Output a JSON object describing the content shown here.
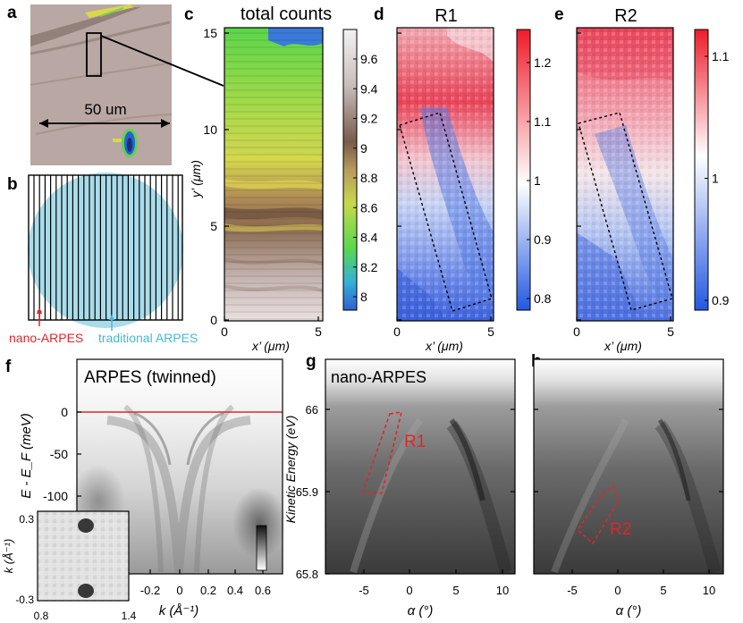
{
  "panel_letters": {
    "a": "a",
    "b": "b",
    "c": "c",
    "d": "d",
    "e": "e",
    "f": "f",
    "g": "g",
    "h": "h"
  },
  "panel_a": {
    "scale_label": "50 um"
  },
  "panel_b": {
    "label_nano": "nano-ARPES",
    "label_traditional": "traditional ARPES"
  },
  "panel_c": {
    "title": "total counts",
    "xlabel": "x’ (μm)",
    "ylabel": "y’ (μm)",
    "xticks": [
      "0",
      "5"
    ],
    "yticks": [
      "0",
      "5",
      "10",
      "15"
    ],
    "colorbar_ticks": [
      "9.6",
      "9.4",
      "9.2",
      "9",
      "8.8",
      "8.6",
      "8.4",
      "8.2",
      "8"
    ]
  },
  "panel_d": {
    "title": "R1",
    "xlabel": "x’ (μm)",
    "xticks": [
      "0",
      "5"
    ],
    "colorbar_ticks": [
      "1.2",
      "1.1",
      "1",
      "0.9",
      "0.8"
    ]
  },
  "panel_e": {
    "title": "R2",
    "xlabel": "x’ (μm)",
    "xticks": [
      "0",
      "5"
    ],
    "colorbar_ticks": [
      "1.1",
      "1",
      "0.9"
    ]
  },
  "panel_f": {
    "title": "ARPES (twinned)",
    "ylabel": "E - E_F (meV)",
    "xlabel": "k (Å⁻¹)",
    "yticks": [
      "0",
      "-50",
      "-100"
    ],
    "xticks": [
      "-0.2",
      "0",
      "0.2",
      "0.4",
      "0.6"
    ],
    "inset": {
      "ylabel": "k (Å⁻¹)",
      "yticks": [
        "0.3",
        "-0.3"
      ],
      "xticks": [
        "0.8",
        "1.4"
      ]
    }
  },
  "panel_g": {
    "title": "nano-ARPES",
    "ylabel": "Kinetic Energy (eV)",
    "yticks": [
      "66",
      "65.9",
      "65.8"
    ],
    "xticks": [
      "-5",
      "0",
      "5",
      "10"
    ],
    "xlabel": "α (°)",
    "region": "R1"
  },
  "panel_h": {
    "xticks": [
      "-5",
      "0",
      "5",
      "10"
    ],
    "xlabel": "α (°)",
    "region": "R2"
  },
  "colors": {
    "red": "#e0262a",
    "blue_mark": "#1f5fd6",
    "light_blue": "#a9dceb"
  }
}
